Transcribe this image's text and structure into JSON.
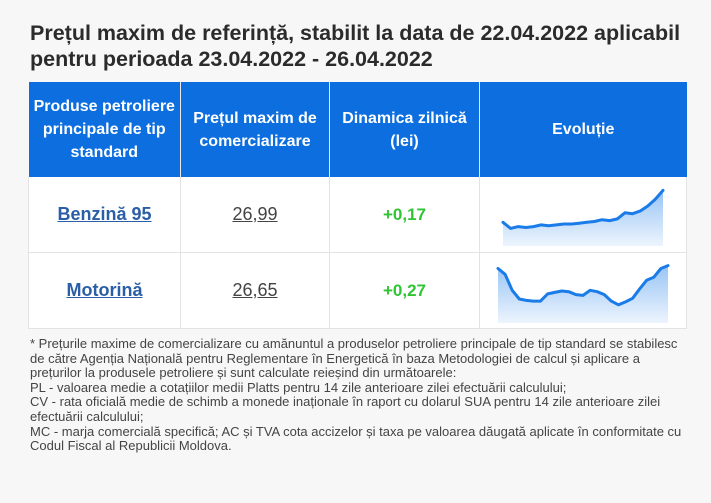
{
  "title": "Prețul maxim de referință, stabilit la data de 22.04.2022 aplicabil pentru perioada 23.04.2022 - 26.04.2022",
  "table": {
    "headers": [
      "Produse petroliere principale de tip standard",
      "Prețul maxim de comercializare",
      "Dinamica zilnică (lei)",
      "Evoluție"
    ],
    "rows": [
      {
        "product": "Benzină 95",
        "price": "26,99",
        "change": "+0,17"
      },
      {
        "product": "Motorină",
        "price": "26,65",
        "change": "+0,27"
      }
    ]
  },
  "chart_data": [
    {
      "type": "area",
      "name": "Benzină 95 evoluție",
      "values": [
        24.9,
        24.2,
        24.4,
        24.3,
        24.4,
        24.6,
        24.5,
        24.6,
        24.7,
        24.7,
        24.8,
        24.9,
        25.0,
        25.2,
        25.1,
        25.3,
        26.0,
        25.9,
        26.2,
        26.8,
        27.6,
        28.6
      ],
      "ylim": [
        22.5,
        29.0
      ],
      "color": "#1a7ce8"
    },
    {
      "type": "area",
      "name": "Motorină evoluție",
      "values": [
        29.6,
        28.8,
        26.6,
        25.4,
        25.2,
        25.1,
        25.1,
        26.1,
        26.3,
        26.5,
        26.4,
        26.0,
        25.9,
        26.6,
        26.4,
        26.0,
        25.1,
        24.6,
        25.0,
        25.5,
        26.8,
        28.0,
        28.4,
        29.6,
        30.0
      ],
      "ylim": [
        22.5,
        30.5
      ],
      "color": "#1a7ce8"
    }
  ],
  "footnote": [
    "* Prețurile maxime de comercializare cu amănuntul a produselor petroliere principale de tip standard se stabilesc de către Agenția Națională pentru Reglementare în Energetică în baza Metodologiei de calcul și aplicare a prețurilor la produsele petroliere și sunt calculate reieșind din următoarele:",
    "PL - valoarea medie a cotațiilor medii Platts pentru 14 zile anterioare zilei efectuării calculului;",
    "CV - rata oficială medie de schimb a monede inaționale în raport cu dolarul SUA pentru 14 zile anterioare zilei efectuării calculului;",
    "MC - marja comercială specifică; AC și TVA cota accizelor și taxa pe valoarea dăugată aplicate în conformitate cu Codul Fiscal al Republicii Moldova."
  ]
}
